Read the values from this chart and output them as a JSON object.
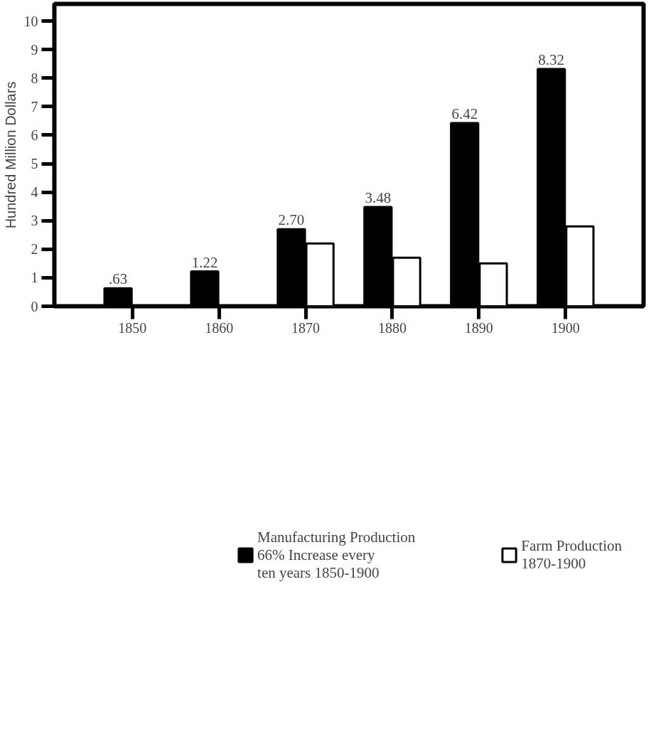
{
  "chart_data": {
    "type": "bar",
    "ylabel": "Hundred Million Dollars",
    "categories": [
      "1850",
      "1860",
      "1870",
      "1880",
      "1890",
      "1900"
    ],
    "series": [
      {
        "name": "Manufacturing Production\n66% Increase every\nten years 1850-1900",
        "color": "#000000",
        "values": [
          0.63,
          1.22,
          2.7,
          3.48,
          6.42,
          8.32
        ],
        "value_labels": [
          ".63",
          "1.22",
          "2.70",
          "3.48",
          "6.42",
          "8.32"
        ]
      },
      {
        "name": "Farm Production\n1870-1900",
        "color": "#ffffff",
        "values": [
          null,
          null,
          2.2,
          1.7,
          1.5,
          2.8
        ]
      }
    ],
    "ylim": [
      0,
      10.6
    ],
    "yticks": [
      0,
      1,
      2,
      3,
      4,
      5,
      6,
      7,
      8,
      9,
      10
    ],
    "grid": false,
    "legend": "bottom"
  }
}
